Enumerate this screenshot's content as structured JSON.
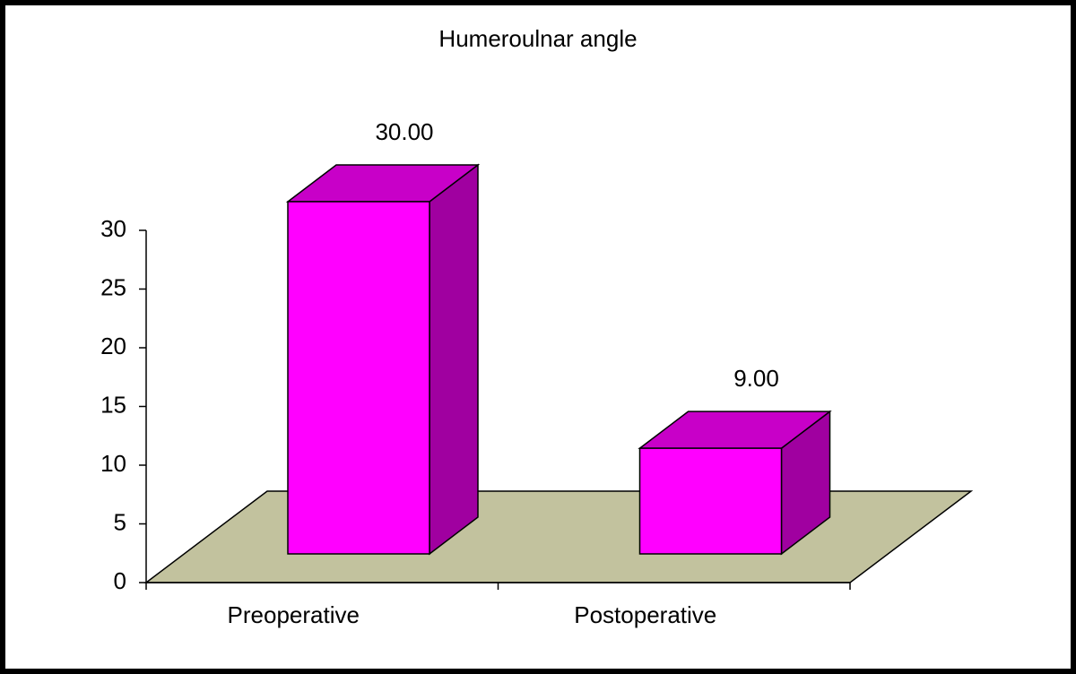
{
  "chart_data": {
    "type": "bar3d",
    "title": "Humeroulnar angle",
    "categories": [
      "Preoperative",
      "Postoperative"
    ],
    "values": [
      30,
      9
    ],
    "value_labels": [
      "30.00",
      "9.00"
    ],
    "color": "#ff00ff",
    "ylim": [
      0,
      30
    ],
    "yticks": [
      0,
      5,
      10,
      15,
      20,
      25,
      30
    ]
  }
}
